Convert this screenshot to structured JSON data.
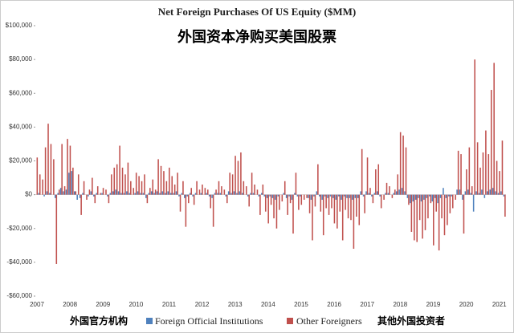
{
  "chart_data": {
    "type": "bar",
    "title": "Net Foreign Purchases Of US Equity ($MM)",
    "subtitle": "外国资本净购买美国股票",
    "annotations": [
      "外国官方机构",
      "其他外国投资者"
    ],
    "categories": [
      "2007",
      null,
      null,
      null,
      null,
      null,
      null,
      null,
      null,
      null,
      null,
      null,
      "2008",
      null,
      null,
      null,
      null,
      null,
      null,
      null,
      null,
      null,
      null,
      null,
      "2009",
      null,
      null,
      null,
      null,
      null,
      null,
      null,
      null,
      null,
      null,
      null,
      "2010",
      null,
      null,
      null,
      null,
      null,
      null,
      null,
      null,
      null,
      null,
      null,
      "2011",
      null,
      null,
      null,
      null,
      null,
      null,
      null,
      null,
      null,
      null,
      null,
      "2012",
      null,
      null,
      null,
      null,
      null,
      null,
      null,
      null,
      null,
      null,
      null,
      "2013",
      null,
      null,
      null,
      null,
      null,
      null,
      null,
      null,
      null,
      null,
      null,
      "2014",
      null,
      null,
      null,
      null,
      null,
      null,
      null,
      null,
      null,
      null,
      null,
      "2015",
      null,
      null,
      null,
      null,
      null,
      null,
      null,
      null,
      null,
      null,
      null,
      "2016",
      null,
      null,
      null,
      null,
      null,
      null,
      null,
      null,
      null,
      null,
      null,
      "2017",
      null,
      null,
      null,
      null,
      null,
      null,
      null,
      null,
      null,
      null,
      null,
      "2018",
      null,
      null,
      null,
      null,
      null,
      null,
      null,
      null,
      null,
      null,
      null,
      "2019",
      null,
      null,
      null,
      null,
      null,
      null,
      null,
      null,
      null,
      null,
      null,
      "2020",
      null,
      null,
      null,
      null,
      null,
      null,
      null,
      null,
      null,
      null,
      null,
      "2021",
      null,
      null
    ],
    "series": [
      {
        "name": "Foreign Official Institutions",
        "color": "#4f81bd",
        "values": [
          0,
          1000,
          0,
          -1000,
          2000,
          1000,
          0,
          -2000,
          1000,
          4000,
          2000,
          3000,
          13000,
          14000,
          2000,
          -3000,
          -2000,
          1000,
          0,
          -1000,
          2000,
          -1000,
          1000,
          0,
          1000,
          0,
          -1000,
          1000,
          2000,
          3000,
          2000,
          1000,
          1000,
          2000,
          1000,
          0,
          1000,
          2000,
          1000,
          1000,
          -2000,
          1000,
          2000,
          1000,
          2000,
          1000,
          2000,
          1000,
          2000,
          1000,
          1000,
          2000,
          -1000,
          1000,
          -2000,
          -1000,
          1000,
          -1000,
          1000,
          0,
          1000,
          0,
          1000,
          -1000,
          -2000,
          1000,
          1000,
          1000,
          0,
          -1000,
          2000,
          1000,
          2000,
          1000,
          2000,
          1000,
          0,
          -1000,
          1000,
          1000,
          0,
          -1000,
          1000,
          -1000,
          -2000,
          -1000,
          -2000,
          -3000,
          -1000,
          0,
          1000,
          -2000,
          -1000,
          -3000,
          1000,
          -1000,
          -1000,
          0,
          0,
          -2000,
          -3000,
          -1000,
          2000,
          -1000,
          -3000,
          -1000,
          -2000,
          -1000,
          -2000,
          -3000,
          -1000,
          -3000,
          -1000,
          -2000,
          -2000,
          -3000,
          -2000,
          -2000,
          2000,
          -1000,
          2000,
          1000,
          -1000,
          1000,
          2000,
          -1000,
          0,
          1000,
          1000,
          0,
          1000,
          2000,
          3000,
          4000,
          2000,
          -2000,
          -5000,
          -4000,
          -3000,
          -2000,
          -4000,
          -3000,
          -2000,
          -1000,
          -4000,
          -2000,
          -5000,
          -2000,
          4000,
          -2000,
          -1000,
          -1000,
          0,
          3000,
          3000,
          -3000,
          2000,
          3000,
          1000,
          -10000,
          2000,
          1000,
          3000,
          -2000,
          2000,
          3000,
          4000,
          2000,
          1000,
          2000,
          -1000
        ]
      },
      {
        "name": "Other Foreigners",
        "color": "#c0504d",
        "values": [
          22000,
          12000,
          9000,
          28000,
          42000,
          30000,
          21000,
          -41000,
          3000,
          30000,
          5000,
          33000,
          29000,
          16000,
          2000,
          12000,
          -12000,
          8000,
          -3000,
          3000,
          10000,
          -5000,
          5000,
          1000,
          4000,
          3000,
          -5000,
          12000,
          16000,
          18000,
          29000,
          16000,
          12000,
          19000,
          8000,
          4000,
          13000,
          11000,
          8000,
          12000,
          -5000,
          4000,
          9000,
          3000,
          21000,
          17000,
          14000,
          8000,
          16000,
          11000,
          6000,
          13000,
          -10000,
          8000,
          -19000,
          -5000,
          4000,
          -6000,
          8000,
          3000,
          6000,
          4000,
          3000,
          -8000,
          -19000,
          3000,
          8000,
          5000,
          3000,
          -5000,
          13000,
          12000,
          23000,
          20000,
          25000,
          8000,
          5000,
          -7000,
          13000,
          6000,
          3000,
          -12000,
          6000,
          -10000,
          -17000,
          -6000,
          -14000,
          -20000,
          -9000,
          -4000,
          8000,
          -12000,
          -5000,
          -23000,
          13000,
          -9000,
          -6000,
          -3000,
          -2000,
          -11000,
          -27000,
          -7000,
          18000,
          -10000,
          -24000,
          -8000,
          -12000,
          -8000,
          -17000,
          -20000,
          -10000,
          -27000,
          -9000,
          -14000,
          -15000,
          -32000,
          -13000,
          -18000,
          27000,
          -11000,
          22000,
          4000,
          -5000,
          15000,
          18000,
          -8000,
          -3000,
          7000,
          5000,
          -2000,
          3000,
          12000,
          37000,
          35000,
          28000,
          -6000,
          -22000,
          -27000,
          -28000,
          -15000,
          -26000,
          -21000,
          -14000,
          -5000,
          -30000,
          -10000,
          -33000,
          -14000,
          -24000,
          -18000,
          -11000,
          -8000,
          -3000,
          26000,
          24000,
          -23000,
          15000,
          28000,
          5000,
          80000,
          31000,
          16000,
          25000,
          38000,
          24000,
          62000,
          78000,
          20000,
          14000,
          32000,
          -13000
        ]
      }
    ],
    "ylim": [
      -60000,
      100000
    ],
    "yticks": [
      {
        "value": -60000,
        "label": "-$60,000"
      },
      {
        "value": -40000,
        "label": "-$40,000"
      },
      {
        "value": -20000,
        "label": "-$20,000"
      },
      {
        "value": 0,
        "label": "$0"
      },
      {
        "value": 20000,
        "label": "$20,000"
      },
      {
        "value": 40000,
        "label": "$40,000"
      },
      {
        "value": 60000,
        "label": "$60,000"
      },
      {
        "value": 80000,
        "label": "$80,000"
      },
      {
        "value": 100000,
        "label": "$100,000"
      }
    ],
    "grid": false
  }
}
